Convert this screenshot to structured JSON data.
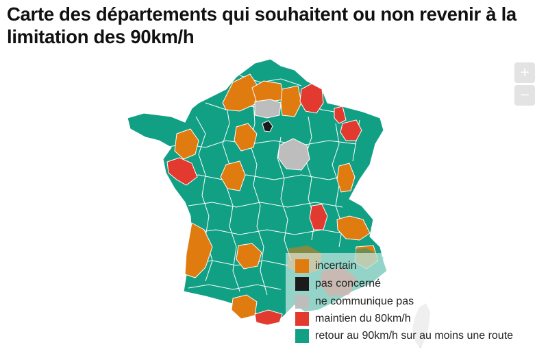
{
  "title": "Carte des départements qui souhaitent ou non revenir à la limitation des 90km/h",
  "controls": {
    "zoom_in": "+",
    "zoom_out": "−"
  },
  "colors": {
    "incertain": "#e07b10",
    "pas_concerne": "#1b1b1b",
    "ne_communique_pas": "#bdbdbd",
    "maintien": "#e33a2f",
    "retour": "#12a085"
  },
  "legend": [
    {
      "key": "incertain",
      "label": "incertain",
      "color": "#e07b10"
    },
    {
      "key": "pas_concerne",
      "label": "pas concerné",
      "color": "#1b1b1b"
    },
    {
      "key": "ne_communique_pas",
      "label": "ne communique pas",
      "color": "#bdbdbd"
    },
    {
      "key": "maintien",
      "label": "maintien du 80km/h",
      "color": "#e33a2f"
    },
    {
      "key": "retour",
      "label": "retour au 90km/h sur au moins une route",
      "color": "#12a085"
    }
  ]
}
